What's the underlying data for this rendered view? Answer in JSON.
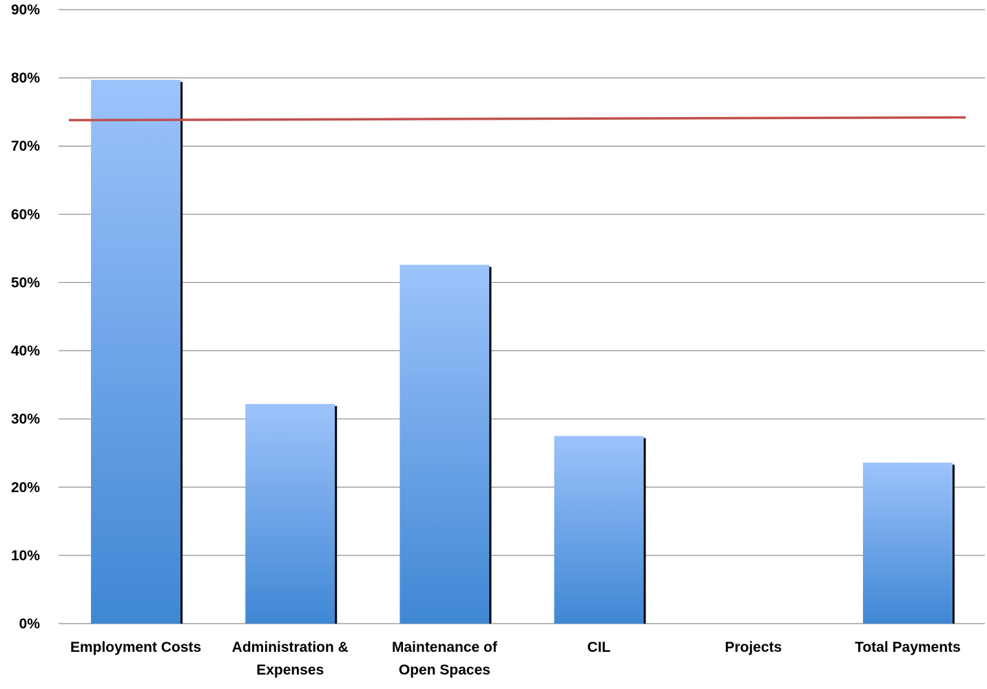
{
  "chart_data": {
    "type": "bar",
    "categories": [
      [
        "Employment Costs"
      ],
      [
        "Administration &",
        "Expenses"
      ],
      [
        "Maintenance of",
        "Open Spaces"
      ],
      [
        "CIL"
      ],
      [
        "Projects"
      ],
      [
        "Total Payments"
      ]
    ],
    "values": [
      79.7,
      32.2,
      52.6,
      27.5,
      0,
      23.6
    ],
    "y_ticks": [
      "0%",
      "10%",
      "20%",
      "30%",
      "40%",
      "50%",
      "60%",
      "70%",
      "80%",
      "90%"
    ],
    "ylim": [
      0,
      90
    ],
    "grid": true,
    "reference_line": {
      "value_start": 73.8,
      "value_end": 74.2,
      "color": "#c0504d"
    },
    "colors": {
      "bar_top": "#9dc3fb",
      "bar_bottom": "#3f87d4",
      "shadow": "#000000",
      "grid": "#8c8c8c"
    },
    "title": "",
    "xlabel": "",
    "ylabel": ""
  }
}
